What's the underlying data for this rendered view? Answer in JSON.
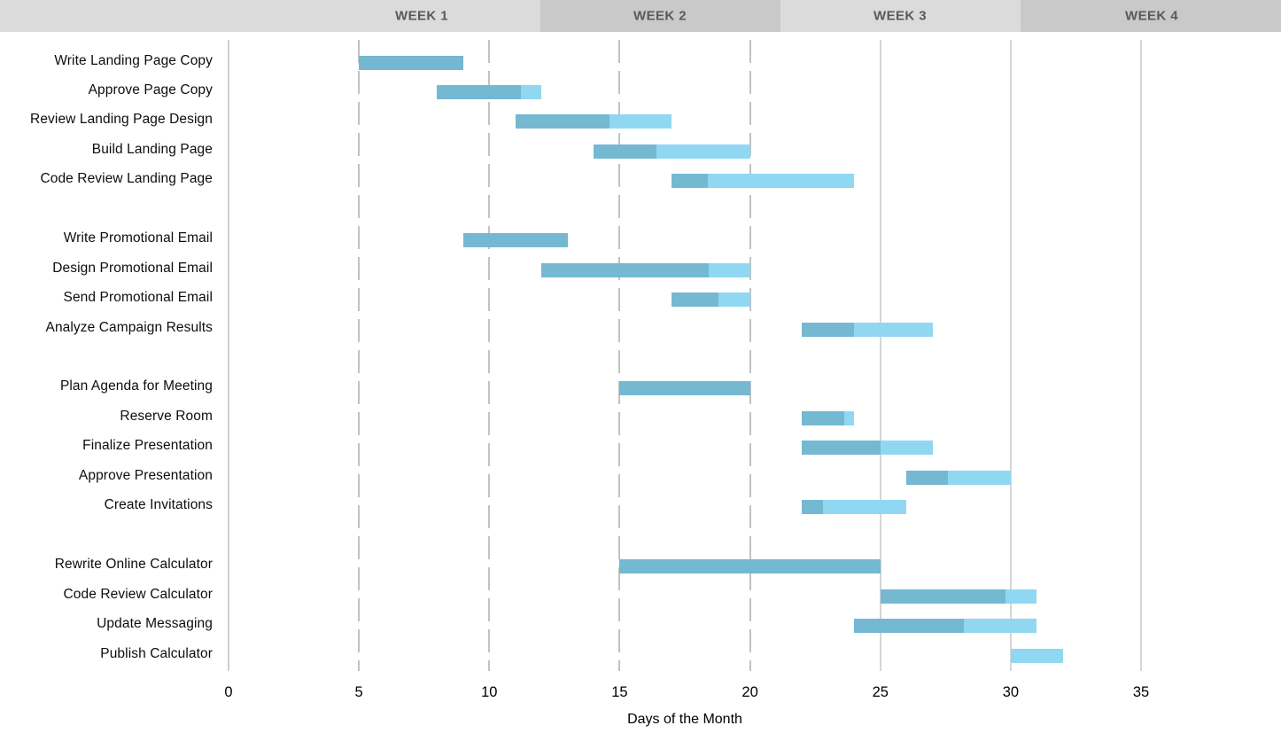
{
  "header": {
    "weeks": [
      "WEEK 1",
      "WEEK 2",
      "WEEK 3",
      "WEEK 4"
    ]
  },
  "chart_data": {
    "type": "bar",
    "variant": "gantt",
    "title": "",
    "xlabel": "Days of the Month",
    "ylabel": "",
    "x_ticks": [
      0,
      5,
      10,
      15,
      20,
      25,
      30,
      35
    ],
    "xlim": [
      0,
      40.4
    ],
    "grid": {
      "dashed_ticks": [
        5,
        10,
        15,
        20
      ],
      "solid_ticks": [
        25,
        30,
        35
      ],
      "axis_tick": 0,
      "legend": "none"
    },
    "colors": {
      "bar_complete": "#74b8d2",
      "bar_remaining": "#90d8f1",
      "header_light": "#dbdbdb",
      "header_dark": "#c9c9c9",
      "header_text": "#595959",
      "grid_dashed": "#c2c2c2",
      "grid_solid": "#d6d6d6"
    },
    "groups": [
      [
        {
          "label": "Write Landing Page Copy",
          "start_day": 5,
          "end_day": 9,
          "percent_complete": 100
        },
        {
          "label": "Approve Page Copy",
          "start_day": 8,
          "end_day": 12,
          "percent_complete": 80
        },
        {
          "label": "Review Landing Page Design",
          "start_day": 11,
          "end_day": 17,
          "percent_complete": 60
        },
        {
          "label": "Build Landing Page",
          "start_day": 14,
          "end_day": 20,
          "percent_complete": 40
        },
        {
          "label": "Code Review Landing Page",
          "start_day": 17,
          "end_day": 24,
          "percent_complete": 20
        }
      ],
      [
        {
          "label": "Write Promotional Email",
          "start_day": 9,
          "end_day": 13,
          "percent_complete": 100
        },
        {
          "label": "Design Promotional Email",
          "start_day": 12,
          "end_day": 20,
          "percent_complete": 80
        },
        {
          "label": "Send Promotional Email",
          "start_day": 17,
          "end_day": 20,
          "percent_complete": 60
        },
        {
          "label": "Analyze Campaign Results",
          "start_day": 22,
          "end_day": 27,
          "percent_complete": 40
        }
      ],
      [
        {
          "label": "Plan Agenda for Meeting",
          "start_day": 15,
          "end_day": 20,
          "percent_complete": 100
        },
        {
          "label": "Reserve Room",
          "start_day": 22,
          "end_day": 24,
          "percent_complete": 80
        },
        {
          "label": "Finalize Presentation",
          "start_day": 22,
          "end_day": 27,
          "percent_complete": 60
        },
        {
          "label": "Approve Presentation",
          "start_day": 26,
          "end_day": 30,
          "percent_complete": 40
        },
        {
          "label": "Create Invitations",
          "start_day": 22,
          "end_day": 26,
          "percent_complete": 20
        }
      ],
      [
        {
          "label": "Rewrite Online Calculator",
          "start_day": 15,
          "end_day": 25,
          "percent_complete": 100
        },
        {
          "label": "Code Review Calculator",
          "start_day": 25,
          "end_day": 31,
          "percent_complete": 80
        },
        {
          "label": "Update Messaging",
          "start_day": 24,
          "end_day": 31,
          "percent_complete": 60
        },
        {
          "label": "Publish Calculator",
          "start_day": 30,
          "end_day": 32,
          "percent_complete": 0
        }
      ]
    ]
  }
}
